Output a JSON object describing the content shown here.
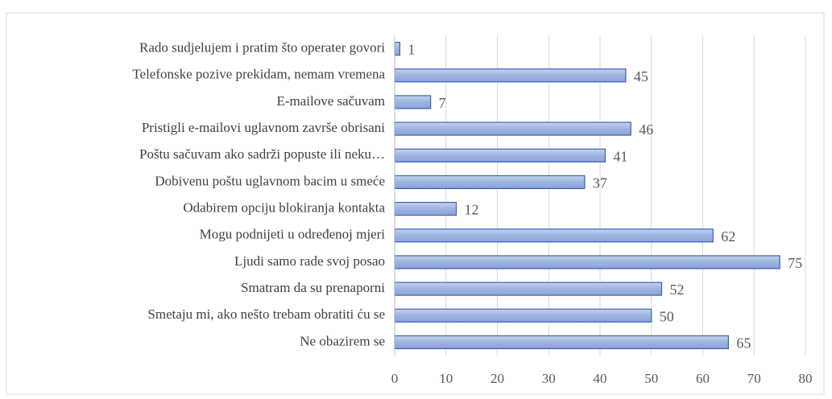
{
  "chart_data": {
    "type": "bar",
    "orientation": "horizontal",
    "categories": [
      "Rado sudjelujem i pratim što operater govori",
      "Telefonske pozive prekidam, nemam vremena",
      "E-mailove sačuvam",
      "Pristigli e-mailovi uglavnom završe obrisani",
      "Poštu sačuvam ako sadrži popuste ili neku…",
      "Dobivenu poštu uglavnom bacim u smeće",
      "Odabirem opciju blokiranja kontakta",
      "Mogu podnijeti u određenoj mjeri",
      "Ljudi samo rade svoj posao",
      "Smatram da su prenaporni",
      "Smetaju mi, ako nešto trebam obratiti ću se",
      "Ne obazirem se"
    ],
    "values": [
      1,
      45,
      7,
      46,
      41,
      37,
      12,
      62,
      75,
      52,
      50,
      65
    ],
    "color": "#9fb3df",
    "xlim": [
      0,
      80
    ],
    "xticks": [
      0,
      10,
      20,
      30,
      40,
      50,
      60,
      70,
      80
    ],
    "grid": true
  }
}
